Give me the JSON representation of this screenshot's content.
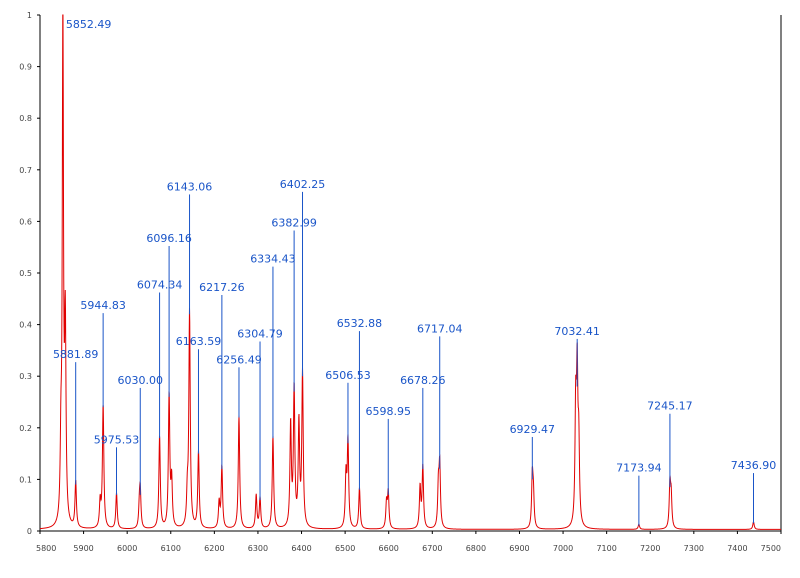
{
  "chart_data": {
    "type": "line",
    "title": "",
    "xlabel": "",
    "ylabel": "",
    "xlim": [
      5800,
      7500
    ],
    "ylim": [
      0,
      1
    ],
    "grid": false,
    "legend": "none",
    "x_ticks": [
      5800,
      5900,
      6000,
      6100,
      6200,
      6300,
      6400,
      6500,
      6600,
      6700,
      6800,
      6900,
      7000,
      7100,
      7200,
      7300,
      7400,
      7500
    ],
    "y_ticks": [
      0,
      0.1,
      0.2,
      0.3,
      0.4,
      0.5,
      0.6,
      0.7,
      0.8,
      0.9,
      1
    ],
    "x_tick_labels": [
      "5800",
      "5900",
      "6000",
      "6100",
      "6200",
      "6300",
      "6400",
      "6500",
      "6600",
      "6700",
      "6800",
      "6900",
      "7000",
      "7100",
      "7200",
      "7300",
      "7400",
      "7500"
    ],
    "y_tick_labels": [
      "0",
      "0.1",
      "0.2",
      "0.3",
      "0.4",
      "0.5",
      "0.6",
      "0.7",
      "0.8",
      "0.9",
      "1"
    ],
    "colors": {
      "spectrum": "#e00000",
      "annotation": "#1a55c8",
      "axis": "#000000"
    },
    "peaks": [
      {
        "label": "5852.49",
        "x": 5852.49,
        "y": 0.99,
        "label_y": 0.975
      },
      {
        "label": "5881.89",
        "x": 5881.89,
        "y": 0.09,
        "label_y": 0.335
      },
      {
        "label": "5944.83",
        "x": 5944.83,
        "y": 0.24,
        "label_y": 0.43
      },
      {
        "label": "5975.53",
        "x": 5975.53,
        "y": 0.07,
        "label_y": 0.17
      },
      {
        "label": "6030.00",
        "x": 6030.0,
        "y": 0.07,
        "label_y": 0.285
      },
      {
        "label": "6074.34",
        "x": 6074.34,
        "y": 0.18,
        "label_y": 0.47
      },
      {
        "label": "6096.16",
        "x": 6096.16,
        "y": 0.26,
        "label_y": 0.56
      },
      {
        "label": "6143.06",
        "x": 6143.06,
        "y": 0.42,
        "label_y": 0.66
      },
      {
        "label": "6163.59",
        "x": 6163.59,
        "y": 0.15,
        "label_y": 0.36
      },
      {
        "label": "6217.26",
        "x": 6217.26,
        "y": 0.12,
        "label_y": 0.465
      },
      {
        "label": "6256.49",
        "x": 6256.49,
        "y": 0.22,
        "label_y": 0.325
      },
      {
        "label": "6304.79",
        "x": 6304.79,
        "y": 0.06,
        "label_y": 0.375
      },
      {
        "label": "6334.43",
        "x": 6334.43,
        "y": 0.18,
        "label_y": 0.52
      },
      {
        "label": "6382.99",
        "x": 6382.99,
        "y": 0.27,
        "label_y": 0.59
      },
      {
        "label": "6402.25",
        "x": 6402.25,
        "y": 0.3,
        "label_y": 0.665
      },
      {
        "label": "6506.53",
        "x": 6506.53,
        "y": 0.17,
        "label_y": 0.295
      },
      {
        "label": "6532.88",
        "x": 6532.88,
        "y": 0.08,
        "label_y": 0.395
      },
      {
        "label": "6598.95",
        "x": 6598.95,
        "y": 0.07,
        "label_y": 0.225
      },
      {
        "label": "6678.26",
        "x": 6678.26,
        "y": 0.12,
        "label_y": 0.285
      },
      {
        "label": "6717.04",
        "x": 6717.04,
        "y": 0.12,
        "label_y": 0.385
      },
      {
        "label": "6929.47",
        "x": 6929.47,
        "y": 0.1,
        "label_y": 0.19
      },
      {
        "label": "7032.41",
        "x": 7032.41,
        "y": 0.28,
        "label_y": 0.38
      },
      {
        "label": "7173.94",
        "x": 7173.94,
        "y": 0.01,
        "label_y": 0.115
      },
      {
        "label": "7245.17",
        "x": 7245.17,
        "y": 0.085,
        "label_y": 0.235
      },
      {
        "label": "7436.90",
        "x": 7436.9,
        "y": 0.015,
        "label_y": 0.12
      }
    ],
    "minor_peaks": [
      {
        "x": 5848,
        "y": 0.14
      },
      {
        "x": 5858,
        "y": 0.38
      },
      {
        "x": 5938,
        "y": 0.05
      },
      {
        "x": 6028,
        "y": 0.04
      },
      {
        "x": 6102,
        "y": 0.09
      },
      {
        "x": 6138,
        "y": 0.06
      },
      {
        "x": 6211,
        "y": 0.05
      },
      {
        "x": 6296,
        "y": 0.065
      },
      {
        "x": 6375,
        "y": 0.2
      },
      {
        "x": 6394,
        "y": 0.2
      },
      {
        "x": 6502,
        "y": 0.1
      },
      {
        "x": 6595,
        "y": 0.05
      },
      {
        "x": 6672,
        "y": 0.08
      },
      {
        "x": 6714,
        "y": 0.08
      },
      {
        "x": 6932,
        "y": 0.06
      },
      {
        "x": 7029,
        "y": 0.22
      },
      {
        "x": 7036,
        "y": 0.15
      },
      {
        "x": 7248,
        "y": 0.06
      }
    ]
  }
}
